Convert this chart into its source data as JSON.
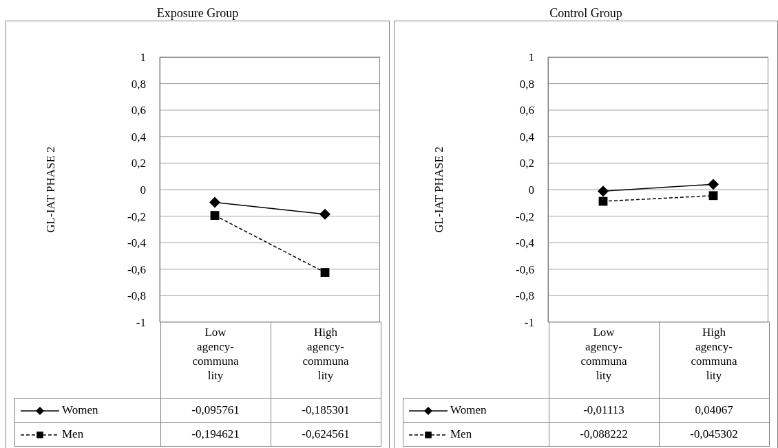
{
  "chart_data": [
    {
      "type": "line",
      "title": "Exposure Group",
      "ylabel": "GL-IAT PHASE 2",
      "categories": [
        "Low agency-communality",
        "High agency-communality"
      ],
      "series": [
        {
          "name": "Women",
          "color": "#000000",
          "marker": "diamond",
          "line_style": "solid",
          "values": [
            -0.095761,
            -0.185301
          ],
          "value_labels": [
            "-0,095761",
            "-0,185301"
          ]
        },
        {
          "name": "Men",
          "color": "#000000",
          "marker": "square",
          "line_style": "dashed",
          "values": [
            -0.194621,
            -0.624561
          ],
          "value_labels": [
            "-0,194621",
            "-0,624561"
          ]
        }
      ],
      "ylim": [
        -1,
        1
      ],
      "yticks": [
        1,
        {
          "value": 0.8,
          "label": "0,8"
        },
        {
          "value": 0.6,
          "label": "0,6"
        },
        {
          "value": 0.4,
          "label": "0,4"
        },
        {
          "value": 0.2,
          "label": "0,2"
        },
        0,
        {
          "value": -0.2,
          "label": "-0,2"
        },
        {
          "value": -0.4,
          "label": "-0,4"
        },
        {
          "value": -0.6,
          "label": "-0,6"
        },
        {
          "value": -0.8,
          "label": "-0,8"
        },
        -1
      ],
      "grid": "y",
      "legend": "bottom",
      "data_labels": true
    },
    {
      "type": "line",
      "title": "Control Group",
      "ylabel": "GL-IAT PHASE 2",
      "categories": [
        "Low agency-communality",
        "High agency-communality"
      ],
      "series": [
        {
          "name": "Women",
          "color": "#000000",
          "marker": "diamond",
          "line_style": "solid",
          "values": [
            -0.01113,
            0.04067
          ],
          "value_labels": [
            "-0,01113",
            "0,04067"
          ]
        },
        {
          "name": "Men",
          "color": "#000000",
          "marker": "square",
          "line_style": "dashed",
          "values": [
            -0.088222,
            -0.045302
          ],
          "value_labels": [
            "-0,088222",
            "-0,045302"
          ]
        }
      ],
      "ylim": [
        -1,
        1
      ],
      "yticks": [
        1,
        {
          "value": 0.8,
          "label": "0,8"
        },
        {
          "value": 0.6,
          "label": "0,6"
        },
        {
          "value": 0.4,
          "label": "0,4"
        },
        {
          "value": 0.2,
          "label": "0,2"
        },
        0,
        {
          "value": -0.2,
          "label": "-0,2"
        },
        {
          "value": -0.4,
          "label": "-0,4"
        },
        {
          "value": -0.6,
          "label": "-0,6"
        },
        {
          "value": -0.8,
          "label": "-0,8"
        },
        -1
      ],
      "grid": "y",
      "legend": "bottom",
      "data_labels": true
    }
  ]
}
